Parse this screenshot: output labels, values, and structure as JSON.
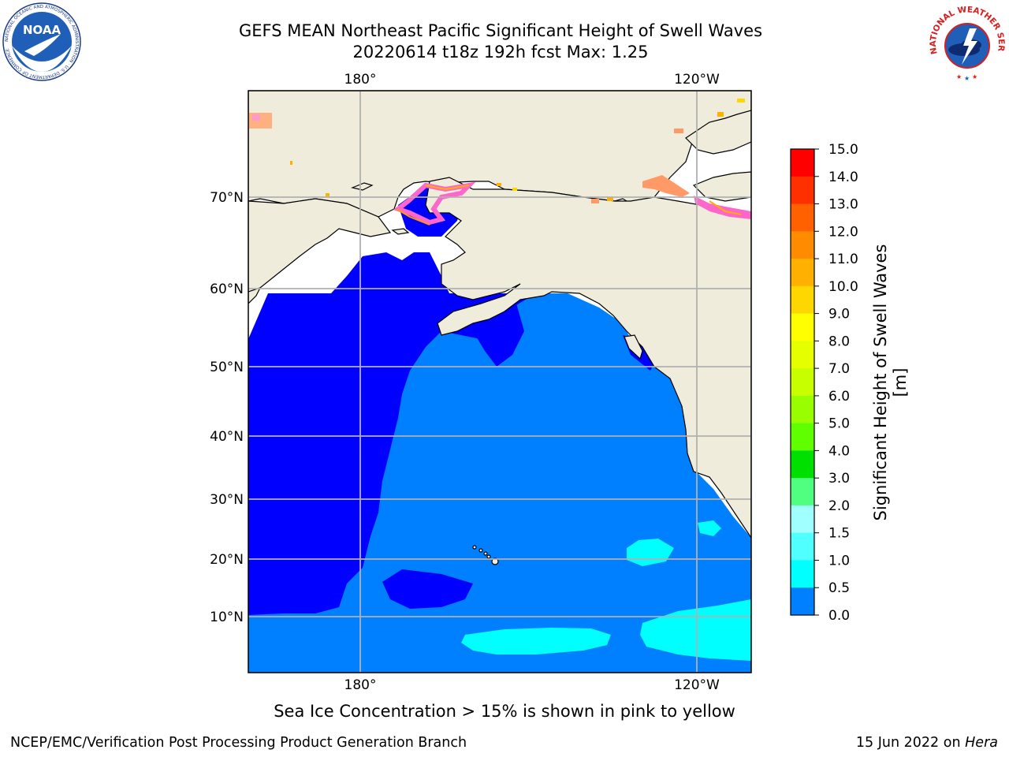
{
  "header": {
    "title_line1": "GEFS MEAN Northeast Pacific Significant Height of Swell Waves",
    "title_line2": "20220614 t18z 192h fcst   Max: 1.25",
    "left_logo": "noaa-logo",
    "left_logo_text": "NOAA",
    "left_logo_ring_text": "NATIONAL OCEANIC AND ATMOSPHERIC ADMINISTRATION · U.S. DEPARTMENT OF COMMERCE",
    "right_logo": "nws-logo",
    "right_logo_ring_text": "NATIONAL WEATHER SERVICE"
  },
  "map": {
    "projection": "mercator",
    "lon_ticks": [
      "180°",
      "120°W"
    ],
    "lat_ticks": [
      "70°N",
      "60°N",
      "50°N",
      "40°N",
      "30°N",
      "20°N",
      "10°N"
    ],
    "colors": {
      "land": "#efecdc",
      "sea_0_0.5": "#0000ff",
      "sea_0.5_1": "#0080ff",
      "sea_1_1.5": "#00ffff",
      "ice": "#ff66cc",
      "grid": "#b0b0b0"
    }
  },
  "colorbar": {
    "label": "Significant Height of Swell Waves [m]",
    "ticks": [
      "15.0",
      "14.0",
      "13.0",
      "12.0",
      "11.0",
      "10.0",
      "9.0",
      "8.0",
      "7.0",
      "6.0",
      "5.0",
      "4.0",
      "3.0",
      "2.0",
      "1.5",
      "1.0",
      "0.5",
      "0.0"
    ],
    "colors": [
      "#ff0000",
      "#ff3000",
      "#ff6000",
      "#ff8c00",
      "#ffb000",
      "#ffd700",
      "#ffff00",
      "#e5ff00",
      "#c8ff00",
      "#99ff00",
      "#60ff00",
      "#00e000",
      "#50ff80",
      "#a0ffff",
      "#50ffff",
      "#00ffff",
      "#0080ff",
      "#0000ff"
    ]
  },
  "footnote": "Sea Ice Concentration > 15% is shown in pink to yellow",
  "footer": {
    "left": "NCEP/EMC/Verification Post Processing Product Generation Branch",
    "right_date": "15 Jun 2022 on",
    "right_machine": "Hera"
  }
}
